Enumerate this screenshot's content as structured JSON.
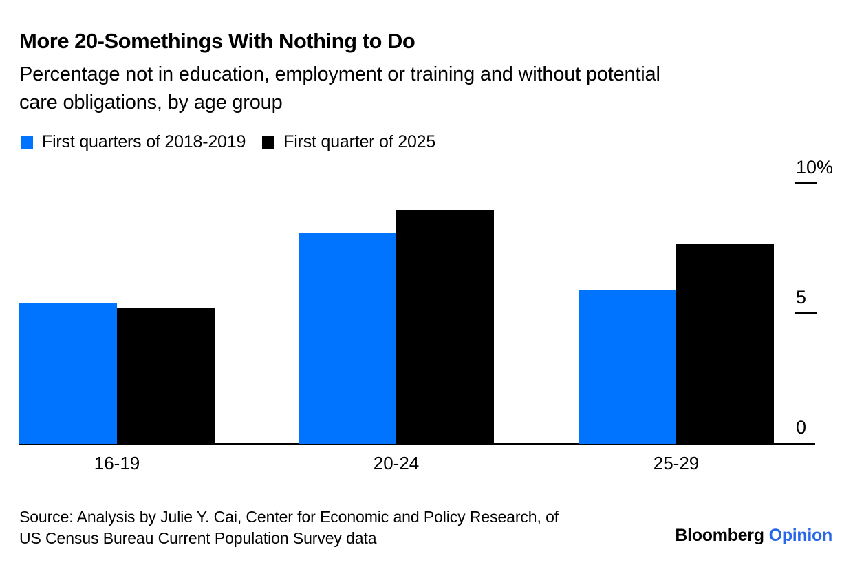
{
  "header": {
    "title": "More 20-Somethings With Nothing to Do",
    "subtitle_line1": "Percentage not in education, employment or training and without potential",
    "subtitle_line2": "care obligations, by age group"
  },
  "legend": [
    {
      "label": "First quarters of 2018-2019",
      "color": "#0073ff"
    },
    {
      "label": "First quarter of 2025",
      "color": "#000000"
    }
  ],
  "chart_data": {
    "type": "bar",
    "categories": [
      "16-19",
      "20-24",
      "25-29"
    ],
    "series": [
      {
        "name": "First quarters of 2018-2019",
        "color": "#0073ff",
        "values": [
          5.4,
          8.1,
          5.9
        ]
      },
      {
        "name": "First quarter of 2025",
        "color": "#000000",
        "values": [
          5.2,
          9.0,
          7.7
        ]
      }
    ],
    "title": "More 20-Somethings With Nothing to Do",
    "subtitle": "Percentage not in education, employment or training and without potential care obligations, by age group",
    "xlabel": "",
    "ylabel": "",
    "ylim": [
      0,
      10
    ],
    "yticks": [
      {
        "value": 0,
        "label": "0"
      },
      {
        "value": 5,
        "label": "5"
      },
      {
        "value": 10,
        "label": "10%"
      }
    ],
    "grid": false,
    "legend_position": "top-left",
    "axis_side": "right"
  },
  "footer": {
    "source_line1": "Source: Analysis by Julie Y. Cai, Center for Economic and Policy Research, of",
    "source_line2": "US Census Bureau Current Population Survey data",
    "logo_bloomberg": "Bloomberg",
    "logo_opinion": "Opinion"
  },
  "colors": {
    "series_blue": "#0073ff",
    "series_black": "#000000",
    "opinion_blue": "#2767e8",
    "background": "#ffffff"
  }
}
